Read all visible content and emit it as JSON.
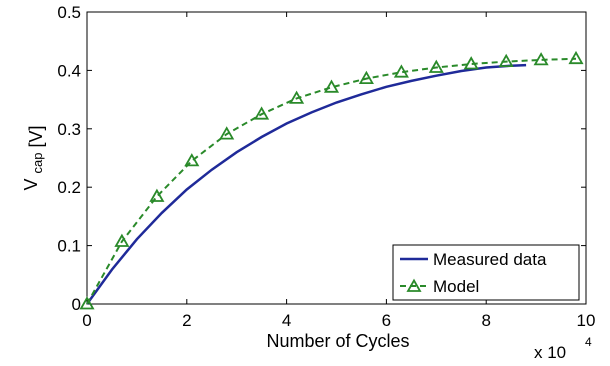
{
  "chart_data": {
    "type": "line",
    "title": "",
    "xlabel": "Number of Cycles",
    "ylabel_main": "V",
    "ylabel_sub": "cap",
    "ylabel_unit": "[V]",
    "x_multiplier_base": "x 10",
    "x_multiplier_exp": "4",
    "xlim": [
      0,
      10
    ],
    "ylim": [
      0,
      0.5
    ],
    "xticks": [
      0,
      2,
      4,
      6,
      8,
      10
    ],
    "xtick_labels": [
      "0",
      "2",
      "4",
      "6",
      "8",
      "10"
    ],
    "yticks": [
      0,
      0.1,
      0.2,
      0.3,
      0.4,
      0.5
    ],
    "ytick_labels": [
      "0",
      "0.1",
      "0.2",
      "0.3",
      "0.4",
      "0.5"
    ],
    "grid": false,
    "legend_position": "bottom-right",
    "series": [
      {
        "name": "Measured data",
        "style": "solid",
        "color": "#1f2a99",
        "x": [
          0,
          0.5,
          1,
          1.5,
          2,
          2.5,
          3,
          3.5,
          4,
          4.5,
          5,
          5.5,
          6,
          6.5,
          7,
          7.5,
          8,
          8.5,
          8.8
        ],
        "y": [
          0,
          0.059,
          0.111,
          0.156,
          0.196,
          0.23,
          0.26,
          0.286,
          0.309,
          0.328,
          0.345,
          0.359,
          0.372,
          0.382,
          0.391,
          0.399,
          0.405,
          0.408,
          0.409
        ]
      },
      {
        "name": "Model",
        "style": "dashed",
        "marker": "triangle",
        "color": "#2a8a2a",
        "x": [
          0,
          0.7,
          1.4,
          2.1,
          2.8,
          3.5,
          4.2,
          4.9,
          5.6,
          6.3,
          7.0,
          7.7,
          8.4,
          9.1,
          9.8
        ],
        "y": [
          0,
          0.107,
          0.184,
          0.245,
          0.291,
          0.325,
          0.352,
          0.371,
          0.386,
          0.397,
          0.405,
          0.411,
          0.415,
          0.418,
          0.42
        ]
      }
    ]
  }
}
